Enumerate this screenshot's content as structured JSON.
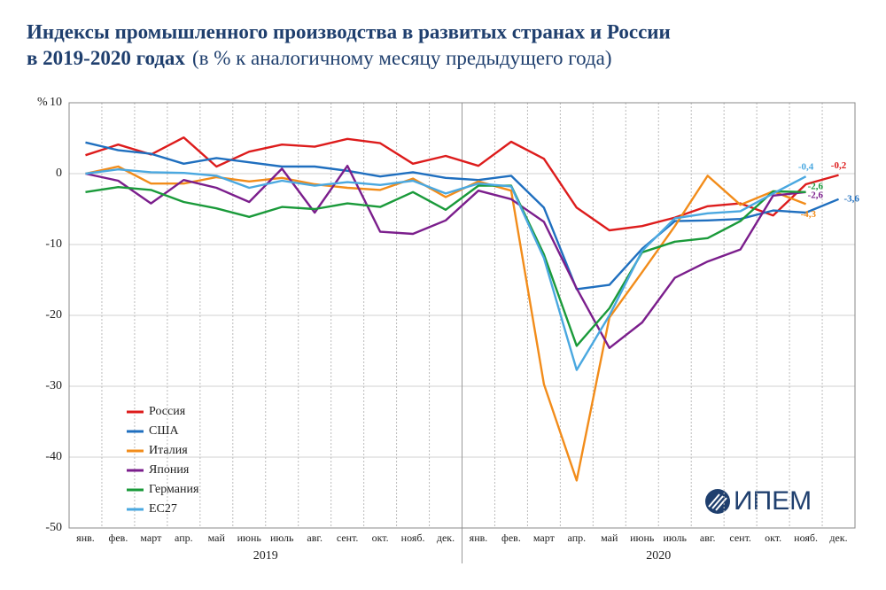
{
  "chart_data": {
    "type": "line",
    "title": "Индексы промышленного производства в развитых странах и России",
    "title_line2": "в 2019-2020 годах",
    "subtitle": "(в % к аналогичному месяцу предыдущего года)",
    "ylabel": "%",
    "logo": "ИПЕМ",
    "categories": [
      "янв.",
      "фев.",
      "март",
      "апр.",
      "май",
      "июнь",
      "июль",
      "авг.",
      "сент.",
      "окт.",
      "нояб.",
      "дек.",
      "янв.",
      "фев.",
      "март",
      "апр.",
      "май",
      "июнь",
      "июль",
      "авг.",
      "сент.",
      "окт.",
      "нояб.",
      "дек."
    ],
    "year_labels": [
      "2019",
      "2020"
    ],
    "ylim": [
      -50,
      10
    ],
    "yticks": [
      -50,
      -40,
      -30,
      -20,
      -10,
      0,
      10
    ],
    "grid": true,
    "series": [
      {
        "name": "Россия",
        "color": "#dd1c1c",
        "values": [
          2.6,
          4.1,
          2.7,
          5.1,
          1.0,
          3.1,
          4.1,
          3.8,
          4.9,
          4.3,
          1.4,
          2.5,
          1.1,
          4.5,
          2.1,
          -4.8,
          -8.0,
          -7.4,
          -6.2,
          -4.6,
          -4.2,
          -5.9,
          -1.5,
          -0.2
        ],
        "value_labels": [
          null,
          null,
          null,
          null,
          null,
          null,
          null,
          null,
          null,
          null,
          null,
          null,
          null,
          null,
          null,
          null,
          null,
          null,
          null,
          null,
          null,
          null,
          null,
          "-0,2"
        ]
      },
      {
        "name": "США",
        "color": "#1f6fbf",
        "values": [
          4.4,
          3.3,
          2.8,
          1.4,
          2.2,
          1.6,
          1.0,
          1.0,
          0.4,
          -0.4,
          0.2,
          -0.6,
          -0.9,
          -0.3,
          -4.8,
          -16.3,
          -15.7,
          -10.6,
          -6.7,
          -6.6,
          -6.4,
          -5.2,
          -5.5,
          -3.6
        ],
        "value_labels": [
          null,
          null,
          null,
          null,
          null,
          null,
          null,
          null,
          null,
          null,
          null,
          null,
          null,
          null,
          null,
          null,
          null,
          null,
          null,
          null,
          null,
          null,
          null,
          "-3,6"
        ]
      },
      {
        "name": "Италия",
        "color": "#f28c1a",
        "values": [
          0.0,
          1.0,
          -1.4,
          -1.4,
          -0.5,
          -1.1,
          -0.6,
          -1.5,
          -2.0,
          -2.3,
          -0.7,
          -3.3,
          -1.1,
          -2.4,
          -29.7,
          -43.3,
          -20.3,
          -13.9,
          -7.4,
          -0.3,
          -4.4,
          -2.5,
          -4.3,
          null
        ],
        "value_labels": [
          null,
          null,
          null,
          null,
          null,
          null,
          null,
          null,
          null,
          null,
          null,
          null,
          null,
          null,
          null,
          null,
          null,
          null,
          null,
          null,
          null,
          null,
          "-4,3",
          null
        ]
      },
      {
        "name": "Япония",
        "color": "#7b1e8c",
        "values": [
          0.0,
          -1.0,
          -4.2,
          -0.9,
          -2.0,
          -4.0,
          0.7,
          -5.5,
          1.1,
          -8.2,
          -8.5,
          -6.6,
          -2.4,
          -3.6,
          -6.8,
          -16.2,
          -24.6,
          -21.0,
          -14.7,
          -12.4,
          -10.7,
          -3.1,
          -2.6,
          null
        ],
        "value_labels": [
          null,
          null,
          null,
          null,
          null,
          null,
          null,
          null,
          null,
          null,
          null,
          null,
          null,
          null,
          null,
          null,
          null,
          null,
          null,
          null,
          null,
          null,
          "-2,6",
          null
        ]
      },
      {
        "name": "Германия",
        "color": "#1a9a3a",
        "values": [
          -2.6,
          -1.9,
          -2.3,
          -4.0,
          -4.9,
          -6.1,
          -4.7,
          -5.0,
          -4.2,
          -4.7,
          -2.6,
          -5.1,
          -1.7,
          -1.7,
          -11.4,
          -24.3,
          -19.0,
          -11.1,
          -9.6,
          -9.1,
          -6.7,
          -2.5,
          -2.6,
          null
        ],
        "value_labels": [
          null,
          null,
          null,
          null,
          null,
          null,
          null,
          null,
          null,
          null,
          null,
          null,
          null,
          null,
          null,
          null,
          null,
          null,
          null,
          null,
          null,
          null,
          "-2,6",
          null
        ]
      },
      {
        "name": "ЕС27",
        "color": "#4aa8e0",
        "values": [
          0.0,
          0.6,
          0.2,
          0.1,
          -0.3,
          -2.0,
          -1.0,
          -1.7,
          -1.2,
          -1.6,
          -1.0,
          -2.8,
          -1.4,
          -1.8,
          -11.9,
          -27.7,
          -20.0,
          -10.9,
          -6.3,
          -5.6,
          -5.3,
          -2.8,
          -0.4,
          null
        ],
        "value_labels": [
          null,
          null,
          null,
          null,
          null,
          null,
          null,
          null,
          null,
          null,
          null,
          null,
          null,
          null,
          null,
          null,
          null,
          null,
          null,
          null,
          null,
          null,
          "-0,4",
          null
        ]
      }
    ]
  }
}
